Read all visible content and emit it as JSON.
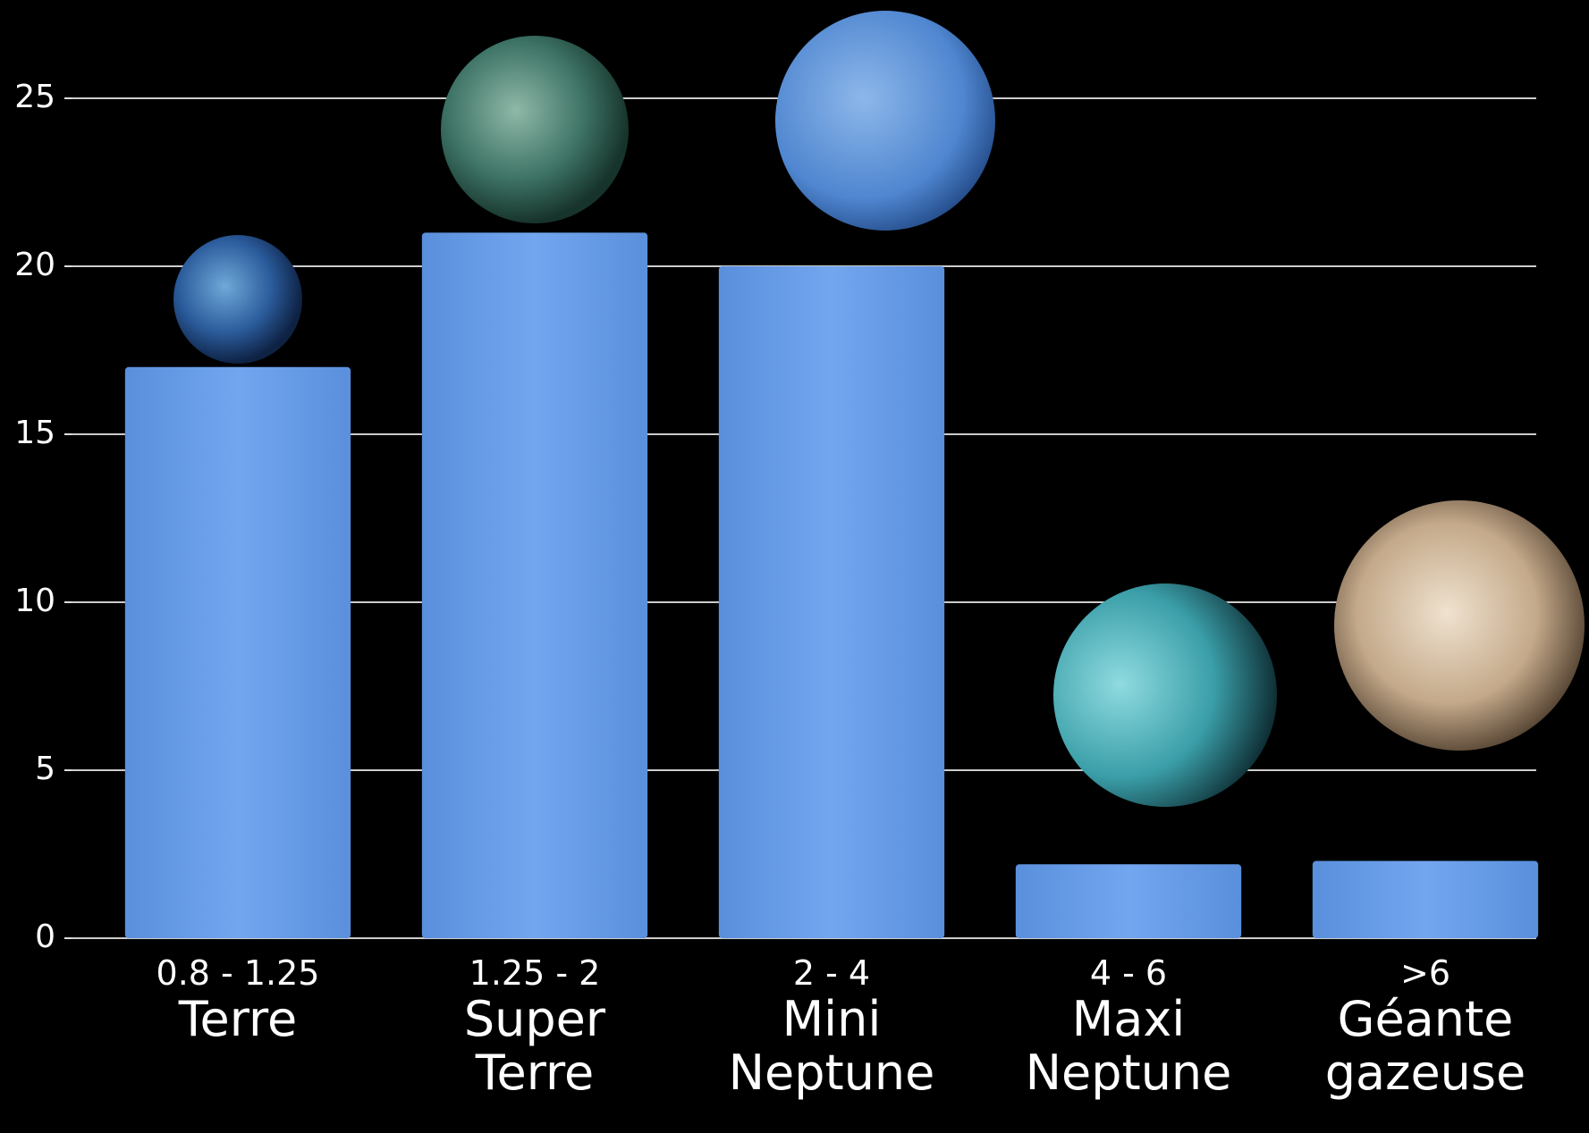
{
  "chart_data": {
    "type": "bar",
    "categories": [
      "Terre",
      "Super Terre",
      "Mini Neptune",
      "Maxi Neptune",
      "Géante gazeuse"
    ],
    "ranges": [
      "0.8 - 1.25",
      "1.25 - 2",
      "2 - 4",
      "4 - 6",
      ">6"
    ],
    "values": [
      17,
      21,
      20,
      2.2,
      2.3
    ],
    "color": "#6a9ee8",
    "ylim": [
      0,
      25
    ],
    "yticks": [
      0,
      5,
      10,
      15,
      20,
      25
    ],
    "grid": true
  }
}
